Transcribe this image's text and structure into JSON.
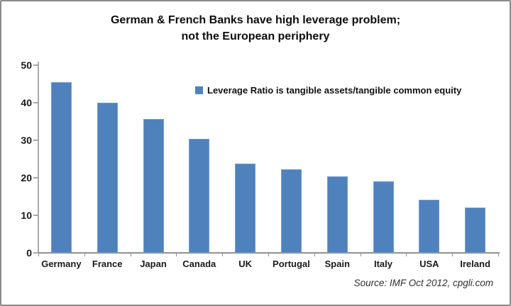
{
  "frame": {
    "border_color": "#8a8a8a",
    "background": "#ffffff"
  },
  "chart_data": {
    "type": "bar",
    "title": "German & French Banks have high leverage problem; not the European periphery",
    "title_lines": [
      "German & French Banks have high leverage problem;",
      "not the European periphery"
    ],
    "categories": [
      "Germany",
      "France",
      "Japan",
      "Canada",
      "UK",
      "Portugal",
      "Spain",
      "Italy",
      "USA",
      "Ireland"
    ],
    "values": [
      45.5,
      40.0,
      35.7,
      30.4,
      23.8,
      22.3,
      20.4,
      19.1,
      14.2,
      12.0
    ],
    "xlabel": "",
    "ylabel": "",
    "ylim": [
      0,
      50
    ],
    "yticks": [
      0,
      10,
      20,
      30,
      40,
      50
    ],
    "grid": false,
    "legend_entries": [
      "Leverage Ratio is tangible assets/tangible common equity"
    ],
    "legend_position": "inside-upper-right",
    "bar_color": "#4f81bd",
    "axis_color": "#919191"
  },
  "source": {
    "text": "Source: IMF Oct 2012, cpgli.com"
  }
}
